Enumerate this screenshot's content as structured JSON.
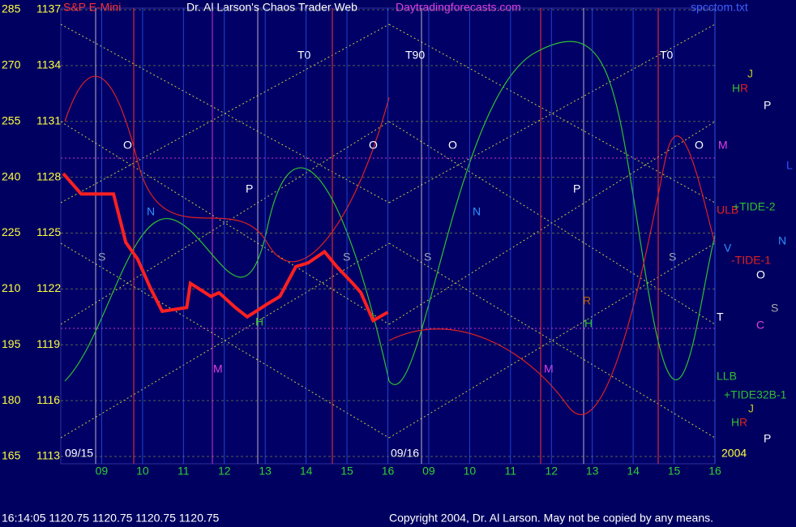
{
  "chart_data": {
    "type": "line",
    "instrument": "S&P E-Mini",
    "title": "Dr. Al Larson's Chaos Trader Web",
    "subtitle": "Daytradingforecasts.com",
    "file": "spcctom.txt",
    "dates": [
      "09/15",
      "09/16"
    ],
    "year": "2004",
    "status": "16:14:05  1120.75 1120.75 1120.75 1120.75",
    "copyright": "Copyright 2004, Dr. Al Larson. May not be copied by any means.",
    "xlim": [
      0,
      16
    ],
    "xticks": [
      {
        "value": 1,
        "label": "09"
      },
      {
        "value": 2,
        "label": "10"
      },
      {
        "value": 3,
        "label": "11"
      },
      {
        "value": 4,
        "label": "12"
      },
      {
        "value": 5,
        "label": "13"
      },
      {
        "value": 6,
        "label": "14"
      },
      {
        "value": 7,
        "label": "15"
      },
      {
        "value": 8,
        "label": "16"
      },
      {
        "value": 9,
        "label": "09"
      },
      {
        "value": 10,
        "label": "10"
      },
      {
        "value": 11,
        "label": "11"
      },
      {
        "value": 12,
        "label": "12"
      },
      {
        "value": 13,
        "label": "13"
      },
      {
        "value": 14,
        "label": "14"
      },
      {
        "value": 15,
        "label": "15"
      },
      {
        "value": 16,
        "label": "16"
      }
    ],
    "ylim": [
      1113,
      1137
    ],
    "yticks": [
      1137,
      1134,
      1131,
      1128,
      1125,
      1122,
      1119,
      1116,
      1113
    ],
    "y2lim": [
      165,
      285
    ],
    "y2ticks": [
      285,
      270,
      255,
      240,
      225,
      210,
      195,
      180,
      165
    ],
    "grid": true,
    "series": [
      {
        "color": "#ff2020",
        "x": [
          0.06,
          0.5,
          1.29,
          1.59,
          1.88,
          2.18,
          2.48,
          3.08,
          3.17,
          3.67,
          3.87,
          4.27,
          4.56,
          5.06,
          5.36,
          5.75,
          6.05,
          6.45,
          6.75,
          7.14,
          7.34,
          7.64,
          8.0
        ],
        "values": [
          1128.2,
          1127.1,
          1127.1,
          1124.5,
          1123.6,
          1122.1,
          1120.8,
          1121.0,
          1122.3,
          1121.6,
          1121.8,
          1121.0,
          1120.5,
          1121.2,
          1121.6,
          1123.2,
          1123.4,
          1124.0,
          1123.2,
          1122.3,
          1121.8,
          1120.3,
          1120.75
        ]
      }
    ],
    "annotations": [
      "T0",
      "T90",
      "T0",
      "O",
      "O",
      "O",
      "O",
      "N",
      "N",
      "P",
      "P",
      "S",
      "S",
      "S",
      "S",
      "H",
      "H",
      "R",
      "M",
      "M",
      "J",
      "H",
      "R",
      "P",
      "M",
      "L",
      "ULB",
      "+TIDE-2",
      "N",
      "V",
      "-TIDE-1",
      "O",
      "S",
      "C",
      "T",
      "LLB",
      "+TIDE32B-1",
      "J",
      "H",
      "R",
      "P"
    ]
  }
}
